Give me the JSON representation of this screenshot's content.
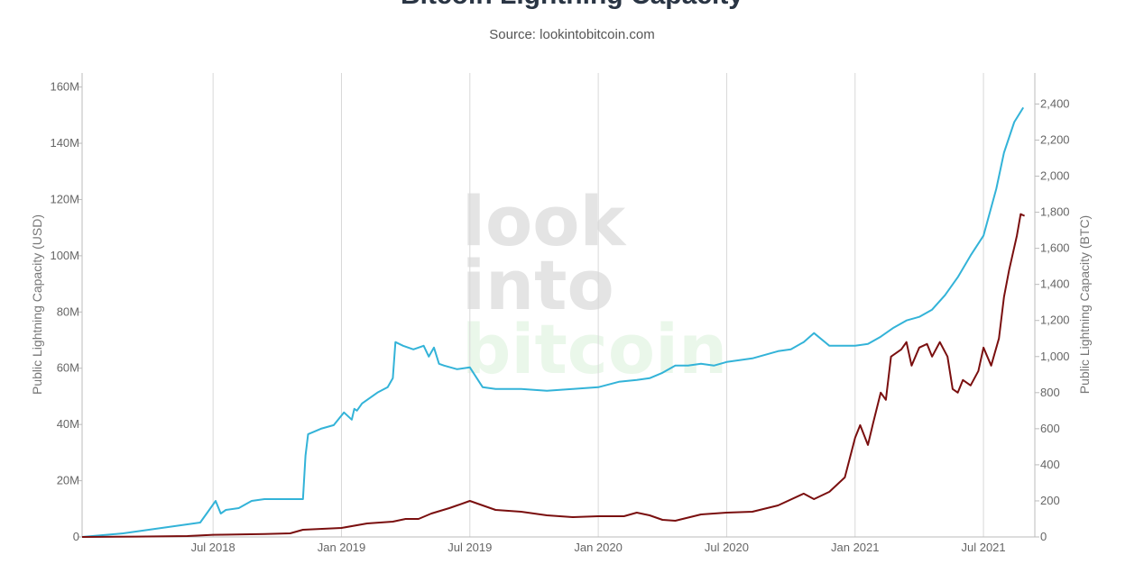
{
  "chart_data": {
    "type": "line",
    "title": "Bitcoin Lightning Capacity",
    "subtitle": "Source: lookintobitcoin.com",
    "watermark": [
      "look",
      "into",
      "bitcoin"
    ],
    "x_ticks": [
      "Jul 2018",
      "Jan 2019",
      "Jul 2019",
      "Jan 2020",
      "Jul 2020",
      "Jan 2021",
      "Jul 2021"
    ],
    "x_tick_positions": [
      2018.5,
      2019.0,
      2019.5,
      2020.0,
      2020.5,
      2021.0,
      2021.5
    ],
    "xlim": [
      2017.99,
      2021.7
    ],
    "y_left": {
      "label": "Public Lightning Capacity (USD)",
      "lim": [
        0,
        165000000
      ],
      "ticks": [
        0,
        20000000,
        40000000,
        60000000,
        80000000,
        100000000,
        120000000,
        140000000,
        160000000
      ],
      "tick_labels": [
        "0",
        "20M",
        "40M",
        "60M",
        "80M",
        "100M",
        "120M",
        "140M",
        "160M"
      ]
    },
    "y_right": {
      "label": "Public Lightning Capacity (BTC)",
      "lim": [
        0,
        2572
      ],
      "ticks": [
        0,
        200,
        400,
        600,
        800,
        1000,
        1200,
        1400,
        1600,
        1800,
        2000,
        2200,
        2400
      ],
      "tick_labels": [
        "0",
        "200",
        "400",
        "600",
        "800",
        "1,000",
        "1,200",
        "1,400",
        "1,600",
        "1,800",
        "2,000",
        "2,200",
        "2,400"
      ]
    },
    "grid": "vertical",
    "series": [
      {
        "axis": "right",
        "color": "#33b3d8",
        "x": [
          2017.99,
          2018.15,
          2018.3,
          2018.45,
          2018.48,
          2018.51,
          2018.53,
          2018.55,
          2018.6,
          2018.65,
          2018.7,
          2018.8,
          2018.85,
          2018.86,
          2018.87,
          2018.92,
          2018.97,
          2019.01,
          2019.04,
          2019.05,
          2019.06,
          2019.08,
          2019.14,
          2019.18,
          2019.2,
          2019.21,
          2019.24,
          2019.28,
          2019.32,
          2019.34,
          2019.36,
          2019.38,
          2019.4,
          2019.45,
          2019.5,
          2019.55,
          2019.6,
          2019.7,
          2019.8,
          2019.9,
          2020.0,
          2020.08,
          2020.15,
          2020.2,
          2020.25,
          2020.3,
          2020.35,
          2020.4,
          2020.45,
          2020.5,
          2020.6,
          2020.7,
          2020.75,
          2020.8,
          2020.84,
          2020.9,
          2021.0,
          2021.05,
          2021.1,
          2021.15,
          2021.2,
          2021.25,
          2021.3,
          2021.35,
          2021.4,
          2021.45,
          2021.5,
          2021.55,
          2021.58,
          2021.62,
          2021.655
        ],
        "y": [
          0,
          20,
          50,
          80,
          140,
          200,
          130,
          150,
          160,
          200,
          210,
          210,
          210,
          450,
          570,
          600,
          620,
          690,
          650,
          710,
          700,
          740,
          800,
          830,
          880,
          1080,
          1060,
          1040,
          1060,
          1000,
          1050,
          960,
          950,
          930,
          940,
          830,
          820,
          820,
          810,
          820,
          830,
          860,
          870,
          880,
          910,
          950,
          950,
          960,
          950,
          970,
          990,
          1030,
          1040,
          1080,
          1130,
          1060,
          1060,
          1070,
          1110,
          1160,
          1200,
          1220,
          1260,
          1340,
          1440,
          1560,
          1670,
          1930,
          2130,
          2300,
          2380
        ]
      },
      {
        "axis": "right",
        "color": "#7a0f0f",
        "x": [
          2017.99,
          2018.2,
          2018.4,
          2018.5,
          2018.7,
          2018.8,
          2018.85,
          2019.0,
          2019.1,
          2019.2,
          2019.25,
          2019.3,
          2019.35,
          2019.42,
          2019.45,
          2019.5,
          2019.55,
          2019.6,
          2019.7,
          2019.8,
          2019.9,
          2020.0,
          2020.1,
          2020.15,
          2020.2,
          2020.25,
          2020.3,
          2020.4,
          2020.5,
          2020.6,
          2020.7,
          2020.8,
          2020.84,
          2020.9,
          2020.96,
          2021.0,
          2021.02,
          2021.05,
          2021.07,
          2021.1,
          2021.12,
          2021.14,
          2021.18,
          2021.2,
          2021.22,
          2021.25,
          2021.28,
          2021.3,
          2021.33,
          2021.36,
          2021.38,
          2021.4,
          2021.42,
          2021.45,
          2021.48,
          2021.5,
          2021.53,
          2021.56,
          2021.58,
          2021.6,
          2021.63,
          2021.645,
          2021.66
        ],
        "y": [
          0,
          2,
          5,
          12,
          16,
          20,
          40,
          50,
          75,
          85,
          100,
          100,
          130,
          160,
          175,
          200,
          175,
          150,
          140,
          120,
          110,
          115,
          115,
          135,
          120,
          95,
          90,
          125,
          135,
          140,
          175,
          240,
          210,
          250,
          330,
          550,
          620,
          510,
          630,
          800,
          760,
          1000,
          1040,
          1080,
          950,
          1050,
          1070,
          1000,
          1080,
          1000,
          820,
          800,
          870,
          840,
          920,
          1050,
          950,
          1100,
          1330,
          1480,
          1670,
          1790,
          1780
        ]
      }
    ]
  }
}
